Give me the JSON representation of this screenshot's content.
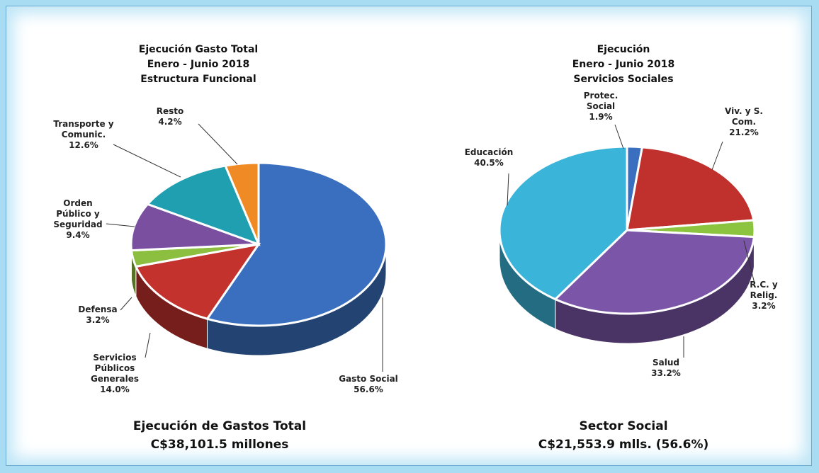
{
  "chart_data": [
    {
      "type": "pie3d",
      "title": "Ejecución Gasto Total\nEnero - Junio 2018\nEstructura Funcional",
      "footer": [
        "Ejecución de Gastos Total",
        "C$38,101.5 millones"
      ],
      "categories": [
        "Gasto Social",
        "Servicios\nPúblicos\nGenerales",
        "Defensa",
        "Orden\nPúblico y\nSeguridad",
        "Transporte y\nComunic.",
        "Resto"
      ],
      "values": [
        56.6,
        14.0,
        3.2,
        9.4,
        12.6,
        4.2
      ],
      "value_labels": [
        "56.6%",
        "14.0%",
        "3.2%",
        "9.4%",
        "12.6%",
        "4.2%"
      ],
      "colors": [
        "#3a6fbf",
        "#c4322e",
        "#8cbf3f",
        "#7a4fa0",
        "#1f9fb0",
        "#f08a24"
      ]
    },
    {
      "type": "pie3d",
      "title": "Ejecución\nEnero -  Junio 2018\nServicios Sociales",
      "footer": [
        "Sector Social",
        "C$21,553.9 mlls. (56.6%)"
      ],
      "categories": [
        "Protec.\nSocial",
        "Viv. y S.\nCom.",
        "R.C. y Relig.",
        "Salud",
        "Educación"
      ],
      "values": [
        1.9,
        21.2,
        3.2,
        33.2,
        40.5
      ],
      "value_labels": [
        "1.9%",
        "21.2%",
        "3.2%",
        "33.2%",
        "40.5%"
      ],
      "colors": [
        "#3a6fbf",
        "#c0312e",
        "#8cc43f",
        "#7b55a8",
        "#3ab4d8"
      ]
    }
  ]
}
